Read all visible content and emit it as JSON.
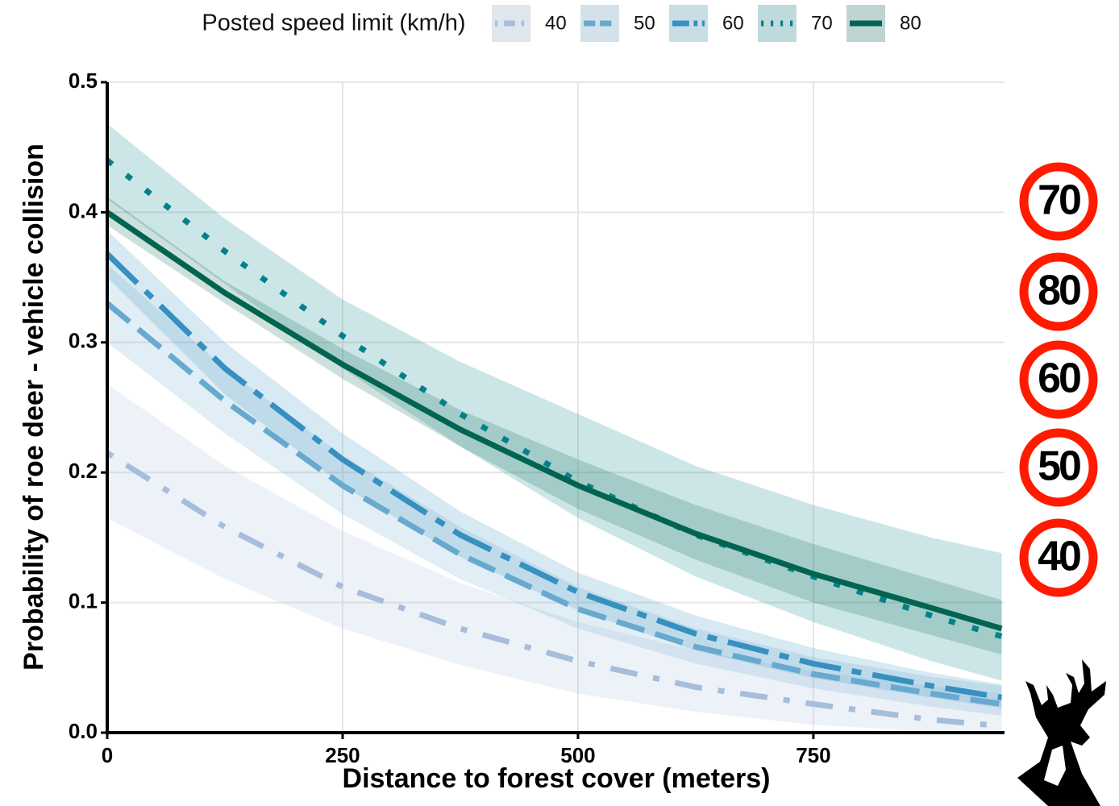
{
  "chart_data": {
    "type": "line",
    "xlabel": "Distance to forest cover (meters)",
    "ylabel": "Probability of roe deer - vehicle collision",
    "legend_title": "Posted speed limit (km/h)",
    "legend_position": "top",
    "grid": true,
    "xlim": [
      0,
      953
    ],
    "ylim": [
      0,
      0.5
    ],
    "xticks": [
      0,
      250,
      500,
      750
    ],
    "yticks": [
      {
        "value": 0,
        "label": "0.0"
      },
      0.1,
      0.2,
      0.3,
      0.4,
      0.5
    ],
    "x": [
      0,
      125,
      250,
      375,
      500,
      625,
      750,
      875,
      950
    ],
    "series": [
      {
        "name": "40",
        "color": "#a6bddb",
        "dash": "8 20 34 20",
        "values": [
          0.215,
          0.158,
          0.112,
          0.08,
          0.055,
          0.035,
          0.022,
          0.01,
          0.005
        ],
        "lower": [
          0.165,
          0.118,
          0.08,
          0.052,
          0.03,
          0.016,
          0.006,
          0.001,
          0
        ],
        "upper": [
          0.268,
          0.205,
          0.155,
          0.115,
          0.085,
          0.063,
          0.047,
          0.036,
          0.03
        ]
      },
      {
        "name": "50",
        "color": "#67a9cf",
        "dash": "36 14",
        "values": [
          0.33,
          0.255,
          0.19,
          0.137,
          0.095,
          0.066,
          0.045,
          0.03,
          0.022
        ],
        "lower": [
          0.3,
          0.23,
          0.168,
          0.118,
          0.08,
          0.053,
          0.034,
          0.02,
          0.013
        ],
        "upper": [
          0.36,
          0.28,
          0.213,
          0.158,
          0.112,
          0.08,
          0.058,
          0.043,
          0.036
        ]
      },
      {
        "name": "60",
        "color": "#3690c0",
        "dash": "52 14 12 14",
        "values": [
          0.368,
          0.28,
          0.21,
          0.152,
          0.108,
          0.076,
          0.053,
          0.036,
          0.027
        ],
        "lower": [
          0.35,
          0.26,
          0.19,
          0.135,
          0.094,
          0.063,
          0.042,
          0.027,
          0.019
        ],
        "upper": [
          0.386,
          0.3,
          0.23,
          0.17,
          0.123,
          0.09,
          0.065,
          0.046,
          0.037
        ]
      },
      {
        "name": "70",
        "color": "#02818a",
        "dash": "8 22",
        "values": [
          0.44,
          0.37,
          0.305,
          0.245,
          0.193,
          0.152,
          0.12,
          0.09,
          0.074
        ],
        "lower": [
          0.41,
          0.345,
          0.28,
          0.22,
          0.165,
          0.12,
          0.085,
          0.055,
          0.04
        ],
        "upper": [
          0.468,
          0.395,
          0.333,
          0.285,
          0.245,
          0.205,
          0.175,
          0.15,
          0.138
        ]
      },
      {
        "name": "80",
        "color": "#016450",
        "dash": "none",
        "values": [
          0.4,
          0.338,
          0.283,
          0.233,
          0.19,
          0.153,
          0.122,
          0.096,
          0.08
        ],
        "lower": [
          0.39,
          0.33,
          0.272,
          0.22,
          0.172,
          0.133,
          0.1,
          0.075,
          0.06
        ],
        "upper": [
          0.412,
          0.347,
          0.295,
          0.248,
          0.21,
          0.175,
          0.145,
          0.118,
          0.102
        ]
      }
    ],
    "sign_labels": [
      "70",
      "80",
      "60",
      "50",
      "40"
    ]
  }
}
